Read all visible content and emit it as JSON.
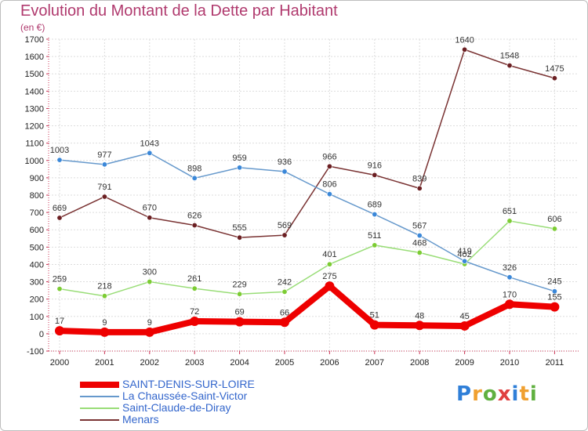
{
  "chart_data": {
    "type": "line",
    "title": "Evolution du Montant de la Dette par Habitant",
    "subtitle": "(en €)",
    "categories": [
      "2000",
      "2001",
      "2002",
      "2003",
      "2004",
      "2005",
      "2006",
      "2007",
      "2008",
      "2009",
      "2010",
      "2011"
    ],
    "ylim": [
      -100,
      1700
    ],
    "yticks": [
      -100,
      0,
      100,
      200,
      300,
      400,
      500,
      600,
      700,
      800,
      900,
      1000,
      1100,
      1200,
      1300,
      1400,
      1500,
      1600,
      1700
    ],
    "grid": true,
    "legend_position": "bottom-left",
    "series": [
      {
        "name": "SAINT-DENIS-SUR-LOIRE",
        "color": "#ee0000",
        "marker": "#ee0000",
        "width": 8,
        "values": [
          17,
          9,
          9,
          72,
          69,
          66,
          275,
          51,
          48,
          45,
          170,
          155
        ],
        "labels": [
          "17",
          "9",
          "9",
          "72",
          "69",
          "66",
          "275",
          "51",
          "48",
          "45",
          "170",
          "155"
        ]
      },
      {
        "name": "La Chaussée-Saint-Victor",
        "color": "#6699cc",
        "marker": "#3b88d9",
        "width": 1.5,
        "values": [
          1003,
          977,
          1043,
          898,
          959,
          936,
          806,
          689,
          567,
          419,
          326,
          245
        ],
        "labels": [
          "1003",
          "977",
          "1043",
          "898",
          "959",
          "936",
          "806",
          "689",
          "567",
          "419",
          "326",
          "245"
        ]
      },
      {
        "name": "Saint-Claude-de-Diray",
        "color": "#99dd77",
        "marker": "#7ccc33",
        "width": 1.5,
        "values": [
          259,
          218,
          300,
          261,
          229,
          242,
          401,
          511,
          468,
          402,
          651,
          606
        ],
        "labels": [
          "259",
          "218",
          "300",
          "261",
          "229",
          "242",
          "401",
          "511",
          "468",
          "402",
          "651",
          "606"
        ]
      },
      {
        "name": "Menars",
        "color": "#7a3333",
        "marker": "#6b1f22",
        "width": 1.5,
        "values": [
          669,
          791,
          670,
          626,
          555,
          569,
          966,
          916,
          839,
          1640,
          1548,
          1475
        ],
        "labels": [
          "669",
          "791",
          "670",
          "626",
          "555",
          "569",
          "966",
          "916",
          "839",
          "1640",
          "1548",
          "1475"
        ]
      }
    ]
  },
  "branding": {
    "letters": [
      "P",
      "r",
      "o",
      "x",
      "i",
      "t",
      "i"
    ],
    "colors": [
      "#2f7fd8",
      "#f0a030",
      "#60b040",
      "#e04040",
      "#2f7fd8",
      "#f0a030",
      "#60b040"
    ]
  }
}
